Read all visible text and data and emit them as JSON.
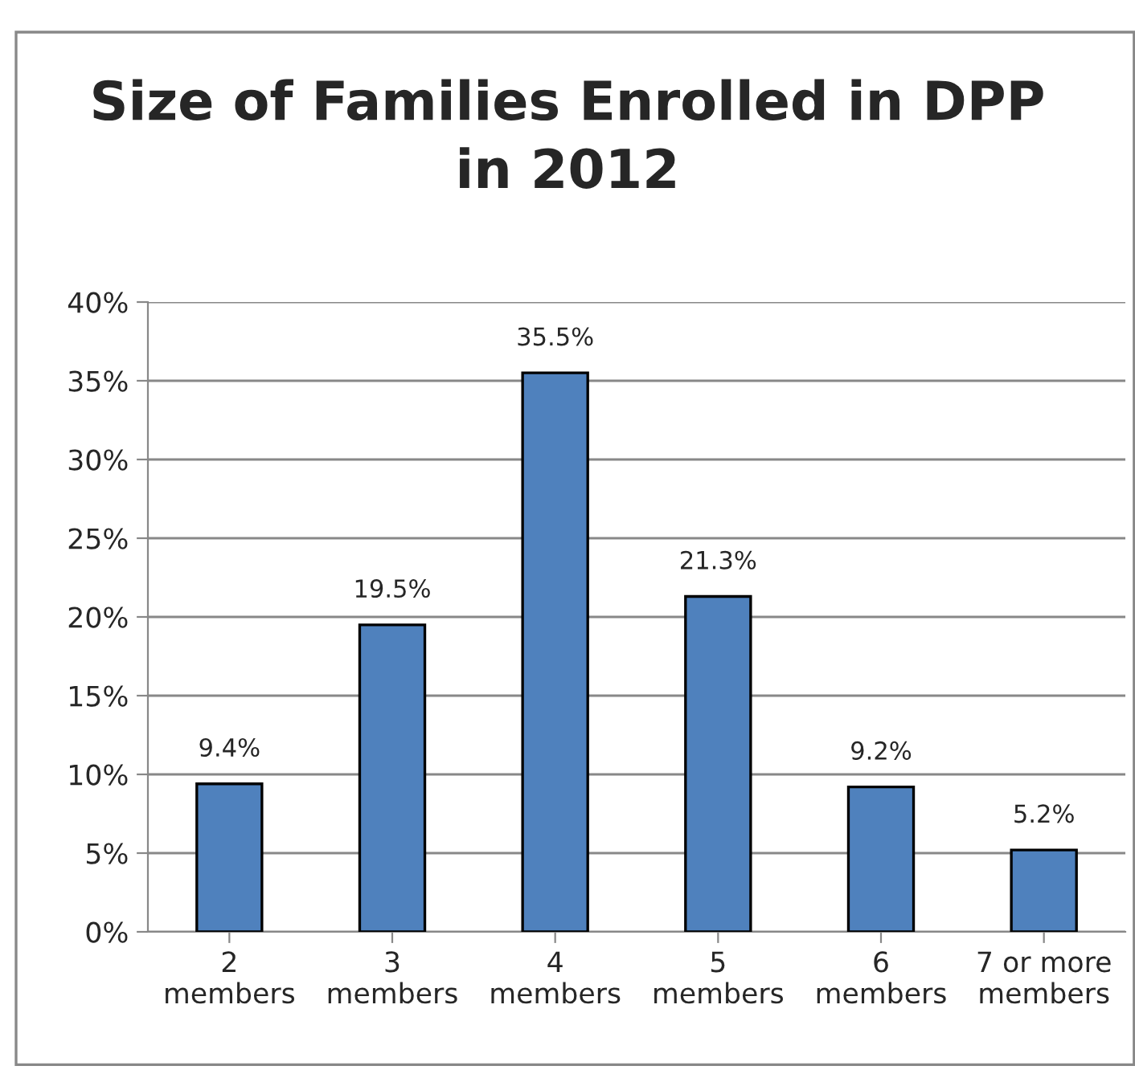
{
  "chart_data": {
    "type": "bar",
    "title": "Size of Families Enrolled in DPP\nin 2012",
    "categories": [
      "2\nmembers",
      "3\nmembers",
      "4\nmembers",
      "5\nmembers",
      "6\nmembers",
      "7 or more\nmembers"
    ],
    "values": [
      9.4,
      19.5,
      35.5,
      21.3,
      9.2,
      5.2
    ],
    "value_labels": [
      "9.4%",
      "19.5%",
      "35.5%",
      "21.3%",
      "9.2%",
      "5.2%"
    ],
    "color": "#4f81bd",
    "ylim": [
      0,
      40
    ],
    "yticks": [
      {
        "value": 0,
        "label": "0%"
      },
      {
        "value": 5,
        "label": "5%"
      },
      {
        "value": 10,
        "label": "10%"
      },
      {
        "value": 15,
        "label": "15%"
      },
      {
        "value": 20,
        "label": "20%"
      },
      {
        "value": 25,
        "label": "25%"
      },
      {
        "value": 30,
        "label": "30%"
      },
      {
        "value": 35,
        "label": "35%"
      },
      {
        "value": 40,
        "label": "40%"
      }
    ],
    "grid": "y",
    "legend": false
  }
}
